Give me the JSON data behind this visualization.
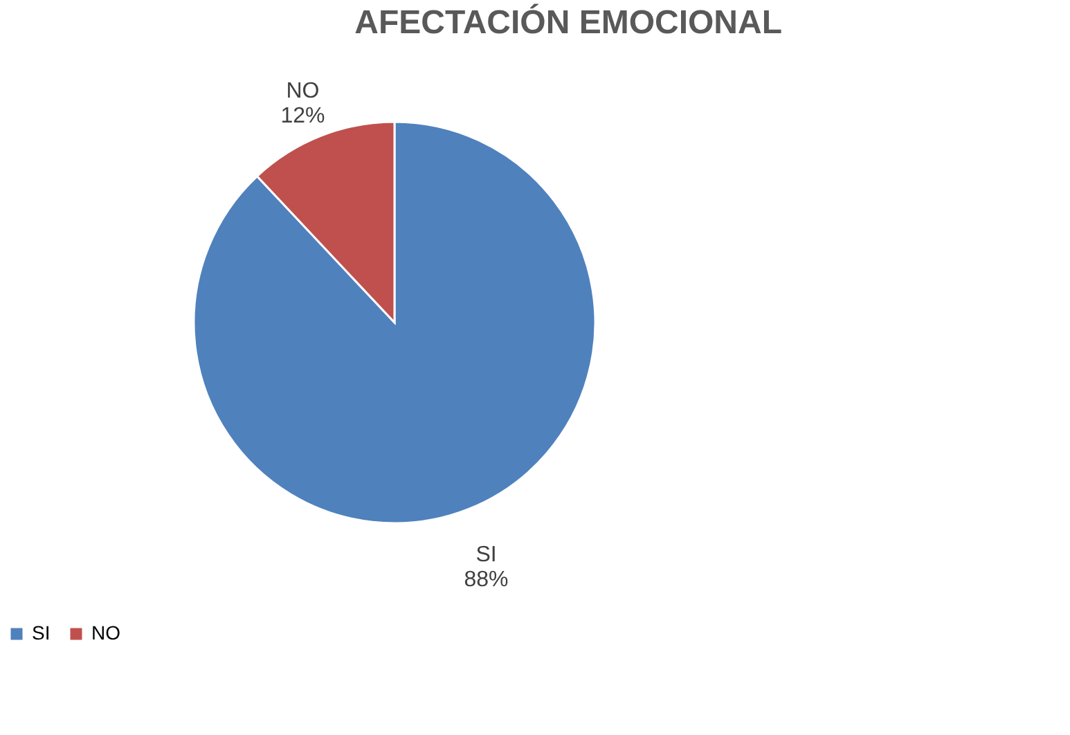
{
  "chart_data": {
    "type": "pie",
    "title": "AFECTACIÓN EMOCIONAL",
    "categories": [
      "SI",
      "NO"
    ],
    "values": [
      88,
      12
    ],
    "colors": [
      "#4f81bd",
      "#c0504d"
    ],
    "value_labels": [
      "88%",
      "12%"
    ],
    "legend": "bottom"
  }
}
